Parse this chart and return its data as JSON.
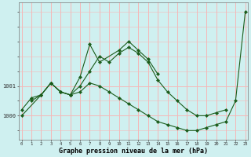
{
  "xlabel": "Graphe pression niveau de la mer (hPa)",
  "bg_color": "#cff0f0",
  "grid_color": "#f5b8b8",
  "line_color": "#1a5c1a",
  "marker_color": "#1a5c1a",
  "hours": [
    0,
    1,
    2,
    3,
    4,
    5,
    6,
    7,
    8,
    9,
    10,
    11,
    12,
    13,
    14,
    15,
    16,
    17,
    18,
    19,
    20,
    21,
    22,
    23
  ],
  "series1": [
    1000.2,
    1000.6,
    1000.7,
    1001.1,
    1000.8,
    1000.7,
    1001.0,
    1001.5,
    1002.0,
    1001.8,
    1002.1,
    1002.3,
    1002.1,
    1001.8,
    1001.2,
    1000.8,
    1000.5,
    1000.2,
    1000.0,
    1000.0,
    1000.1,
    1000.2,
    null,
    null
  ],
  "series2": [
    1000.0,
    null,
    1000.7,
    1001.1,
    1000.8,
    1000.7,
    1000.8,
    1001.1,
    1001.0,
    1000.8,
    1000.6,
    1000.4,
    1000.2,
    1000.0,
    999.8,
    999.7,
    999.6,
    999.5,
    999.5,
    999.6,
    999.7,
    999.8,
    1000.5,
    1003.5
  ],
  "series3": [
    null,
    1000.5,
    1000.7,
    1001.1,
    1000.8,
    1000.7,
    1001.3,
    1002.4,
    1001.8,
    null,
    1002.2,
    1002.5,
    1002.2,
    1001.9,
    1001.4,
    null,
    null,
    null,
    null,
    null,
    null,
    null,
    null,
    null
  ],
  "ylim_min": 999.2,
  "ylim_max": 1003.8,
  "yticks": [
    1000.0,
    1001.0
  ],
  "ytick_labels": [
    "1000",
    "1001"
  ]
}
